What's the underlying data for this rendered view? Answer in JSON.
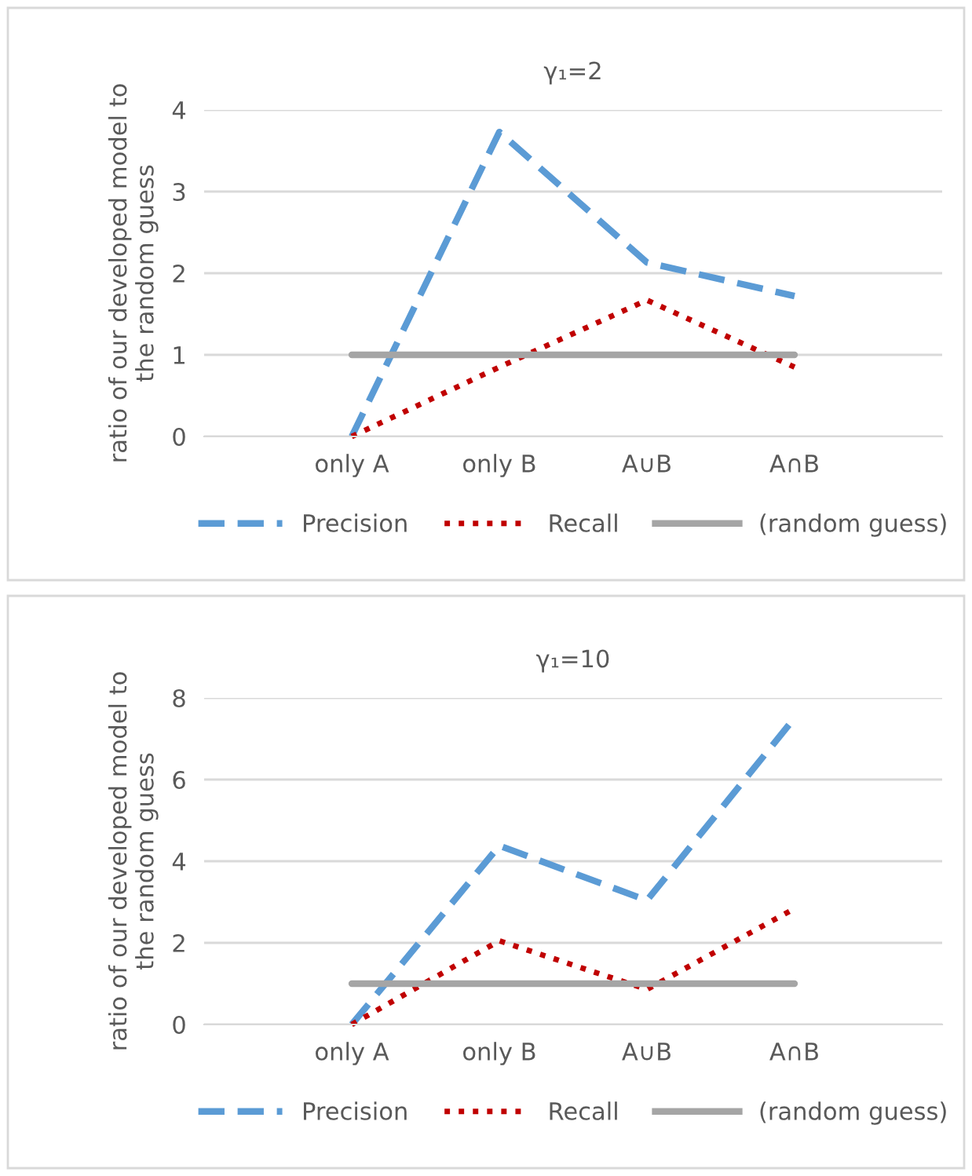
{
  "chart_data": [
    {
      "type": "line",
      "title": "γ₁=2",
      "ylabel": "ratio of our developed model to\nthe random guess",
      "categories": [
        "only A",
        "only B",
        "A∪B",
        "A∩B"
      ],
      "ylim": [
        0,
        4
      ],
      "yticks": [
        0,
        1,
        2,
        3,
        4
      ],
      "grid": "y",
      "legend": "bottom",
      "marker": "none",
      "series": [
        {
          "name": "Precision",
          "color": "#5b9bd5",
          "line_style": "dashed",
          "values": [
            0,
            3.73,
            2.13,
            1.72
          ]
        },
        {
          "name": "Recall",
          "color": "#c00000",
          "line_style": "dotted",
          "values": [
            0,
            0.85,
            1.67,
            0.85
          ]
        },
        {
          "name": "(random guess)",
          "color": "#a5a5a5",
          "line_style": "solid",
          "values": [
            1,
            1,
            1,
            1
          ]
        }
      ]
    },
    {
      "type": "line",
      "title": "γ₁=10",
      "ylabel": "ratio of our developed model to\nthe random guess",
      "categories": [
        "only A",
        "only B",
        "A∪B",
        "A∩B"
      ],
      "ylim": [
        0,
        8
      ],
      "yticks": [
        0,
        2,
        4,
        6,
        8
      ],
      "grid": "y",
      "legend": "bottom",
      "marker": "none",
      "series": [
        {
          "name": "Precision",
          "color": "#5b9bd5",
          "line_style": "dashed",
          "values": [
            0,
            4.38,
            3.04,
            7.51
          ]
        },
        {
          "name": "Recall",
          "color": "#c00000",
          "line_style": "dotted",
          "values": [
            0,
            2.05,
            0.86,
            2.84
          ]
        },
        {
          "name": "(random guess)",
          "color": "#a5a5a5",
          "line_style": "solid",
          "values": [
            1,
            1,
            1,
            1
          ]
        }
      ]
    }
  ]
}
